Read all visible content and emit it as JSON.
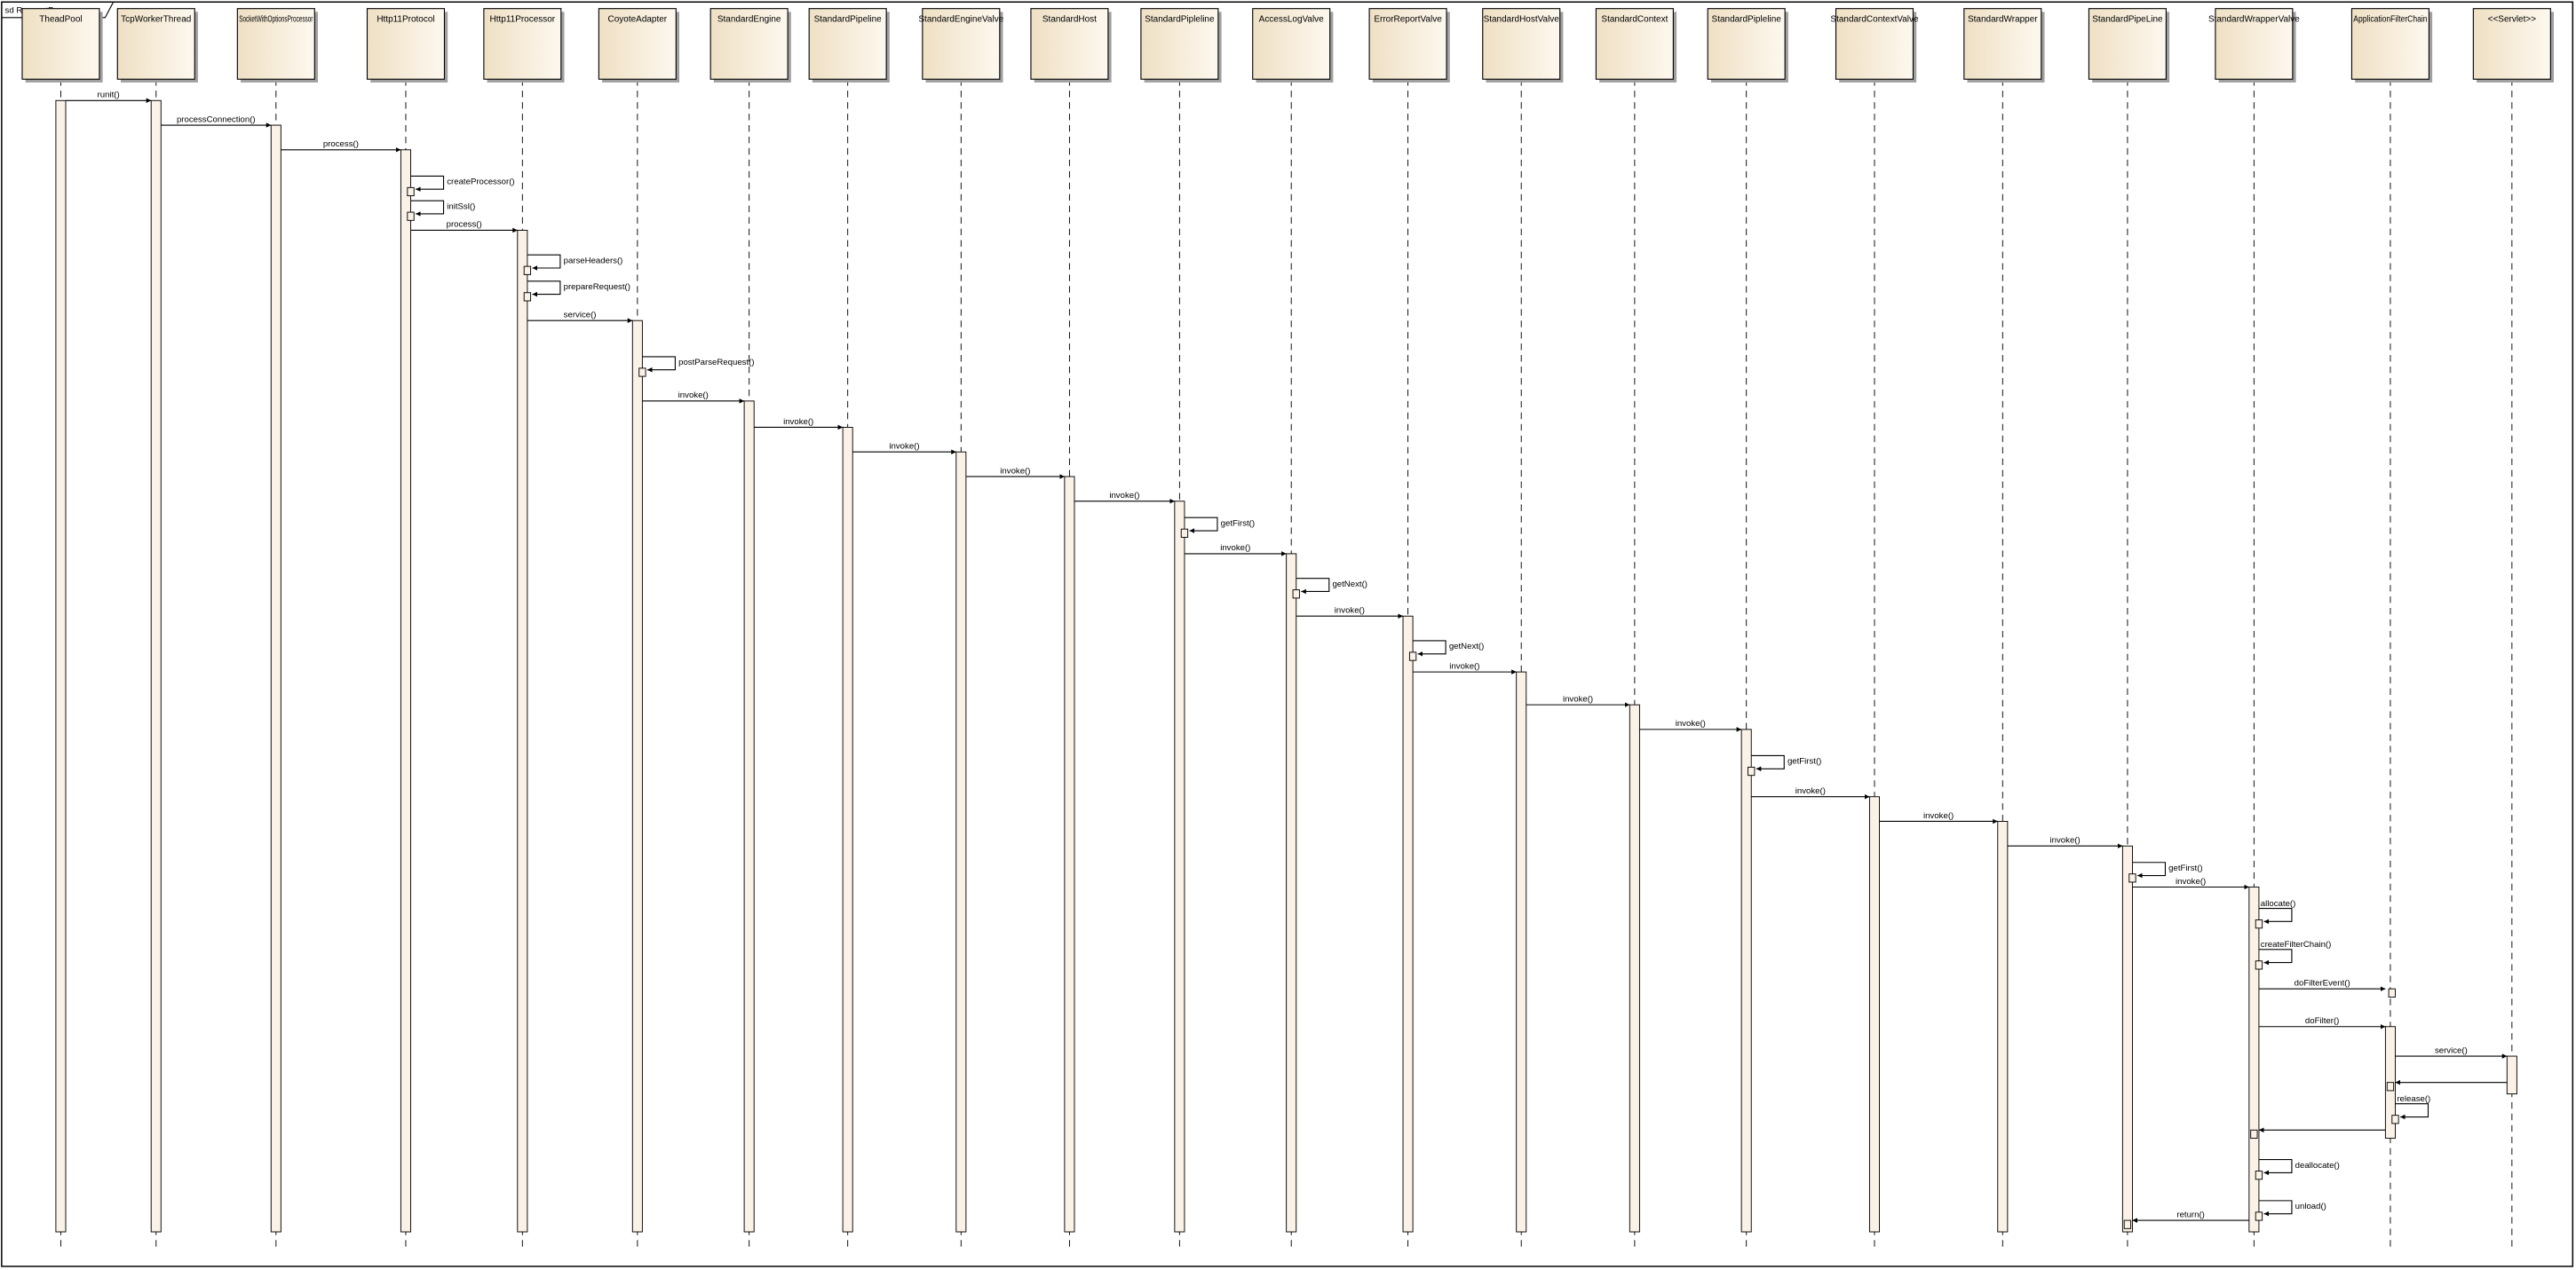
{
  "diagram": {
    "type": "uml-sequence",
    "frame_title": "sd RequestProcess",
    "colors": {
      "box_fill_dark": "#efe0c4",
      "box_fill_light": "#fdf8ef",
      "activation_fill": "#faf2e6",
      "line": "#000000",
      "shadow": "#a0a0a0"
    },
    "lifelines": [
      "TheadPool",
      "TcpWorkerThread",
      "SocketWithOptionsProcessor",
      "Http11Protocol",
      "Http11Processor",
      "CoyoteAdapter",
      "StandardEngine",
      "StandardPipeline",
      "StandardEngineValve",
      "StandardHost",
      "StandardPipleline",
      "AccessLogValve",
      "ErrorReportValve",
      "StandardHostValve",
      "StandardContext",
      "StandardPipleline",
      "StandardContextValve",
      "StandardWrapper",
      "StandardPipeLine",
      "StandardWrapperValve",
      "ApplicationFilterChain",
      "<<Servlet>>"
    ],
    "messages": [
      {
        "from": 0,
        "to": 1,
        "label": "runit()",
        "type": "call"
      },
      {
        "from": 1,
        "to": 2,
        "label": "processConnection()",
        "type": "call"
      },
      {
        "from": 2,
        "to": 3,
        "label": "process()",
        "type": "call"
      },
      {
        "from": 3,
        "to": 3,
        "label": "createProcessor()",
        "type": "self"
      },
      {
        "from": 3,
        "to": 3,
        "label": "initSsl()",
        "type": "self"
      },
      {
        "from": 3,
        "to": 4,
        "label": "process()",
        "type": "call"
      },
      {
        "from": 4,
        "to": 4,
        "label": "parseHeaders()",
        "type": "self"
      },
      {
        "from": 4,
        "to": 4,
        "label": "prepareRequest()",
        "type": "self"
      },
      {
        "from": 4,
        "to": 5,
        "label": "service()",
        "type": "call"
      },
      {
        "from": 5,
        "to": 5,
        "label": "postParseRequest()",
        "type": "self"
      },
      {
        "from": 5,
        "to": 6,
        "label": "invoke()",
        "type": "call"
      },
      {
        "from": 6,
        "to": 7,
        "label": "invoke()",
        "type": "call"
      },
      {
        "from": 7,
        "to": 8,
        "label": "invoke()",
        "type": "call"
      },
      {
        "from": 8,
        "to": 9,
        "label": "invoke()",
        "type": "call"
      },
      {
        "from": 9,
        "to": 10,
        "label": "invoke()",
        "type": "call"
      },
      {
        "from": 10,
        "to": 10,
        "label": "getFirst()",
        "type": "self"
      },
      {
        "from": 10,
        "to": 11,
        "label": "invoke()",
        "type": "call"
      },
      {
        "from": 11,
        "to": 11,
        "label": "getNext()",
        "type": "self"
      },
      {
        "from": 11,
        "to": 12,
        "label": "invoke()",
        "type": "call"
      },
      {
        "from": 12,
        "to": 12,
        "label": "getNext()",
        "type": "self"
      },
      {
        "from": 12,
        "to": 13,
        "label": "invoke()",
        "type": "call"
      },
      {
        "from": 13,
        "to": 14,
        "label": "invoke()",
        "type": "call"
      },
      {
        "from": 14,
        "to": 15,
        "label": "invoke()",
        "type": "call"
      },
      {
        "from": 15,
        "to": 15,
        "label": "getFirst()",
        "type": "self"
      },
      {
        "from": 15,
        "to": 16,
        "label": "invoke()",
        "type": "call"
      },
      {
        "from": 16,
        "to": 17,
        "label": "invoke()",
        "type": "call"
      },
      {
        "from": 17,
        "to": 18,
        "label": "invoke()",
        "type": "call"
      },
      {
        "from": 18,
        "to": 18,
        "label": "getFirst()",
        "type": "self"
      },
      {
        "from": 18,
        "to": 19,
        "label": "invoke()",
        "type": "call"
      },
      {
        "from": 19,
        "to": 19,
        "label": "allocate()",
        "type": "self"
      },
      {
        "from": 19,
        "to": 19,
        "label": "createFilterChain()",
        "type": "self"
      },
      {
        "from": 19,
        "to": 20,
        "label": "doFilterEvent()",
        "type": "call"
      },
      {
        "from": 19,
        "to": 20,
        "label": "doFilter()",
        "type": "call"
      },
      {
        "from": 20,
        "to": 21,
        "label": "service()",
        "type": "call"
      },
      {
        "from": 21,
        "to": 20,
        "label": "",
        "type": "return"
      },
      {
        "from": 20,
        "to": 20,
        "label": "release()",
        "type": "self"
      },
      {
        "from": 20,
        "to": 19,
        "label": "",
        "type": "return"
      },
      {
        "from": 19,
        "to": 19,
        "label": "deallocate()",
        "type": "self"
      },
      {
        "from": 19,
        "to": 19,
        "label": "unload()",
        "type": "self"
      },
      {
        "from": 19,
        "to": 18,
        "label": "return()",
        "type": "return"
      }
    ]
  }
}
